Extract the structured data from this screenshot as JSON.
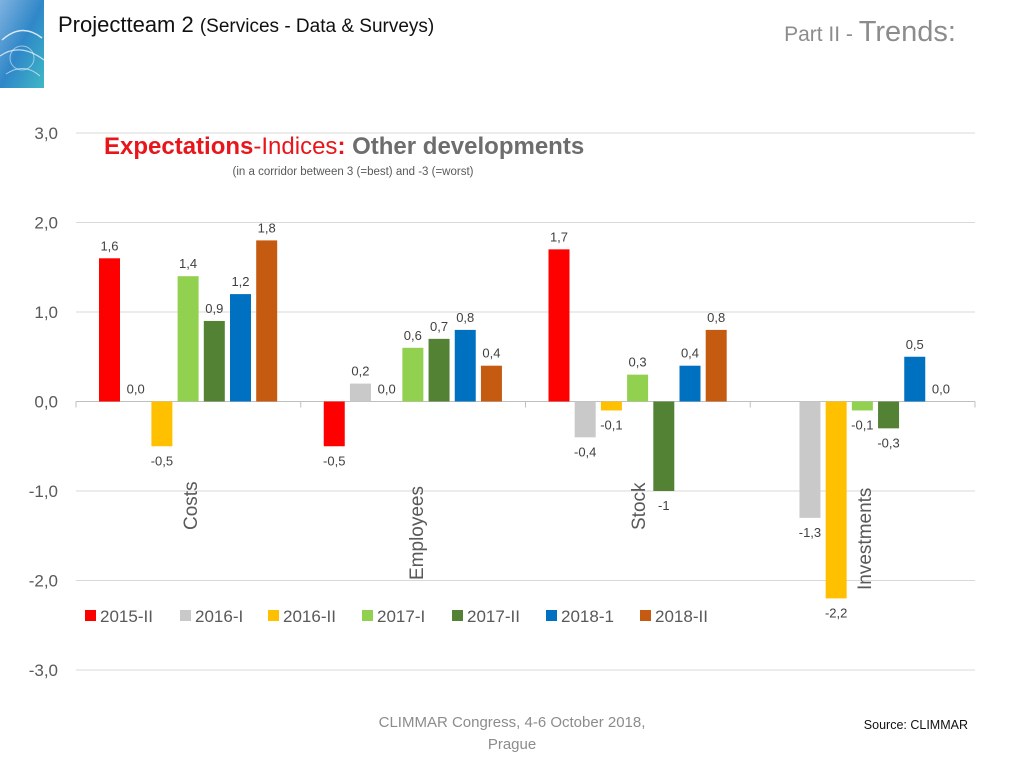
{
  "header": {
    "title": "Projectteam 2",
    "subtitle": "(Services - Data & Surveys)",
    "part_prefix": "Part II - ",
    "part_main": "Trends:"
  },
  "footer": {
    "event_line1": "CLIMMAR Congress, 4-6 October 2018,",
    "event_line2": "Prague",
    "source": "Source: CLIMMAR"
  },
  "colors": {
    "title_red": "#e8161b",
    "title_gray": "#6d6d6d",
    "axis_text": "#595959",
    "grid": "#d9d9d9"
  },
  "chart_data": {
    "type": "bar",
    "title_parts": [
      {
        "text": "Expectations",
        "color": "#e8161b",
        "bold": true
      },
      {
        "text": "-Indices",
        "color": "#e8161b",
        "bold": false
      },
      {
        "text": ": ",
        "color": "#e8161b",
        "bold": true
      },
      {
        "text": "Other developments",
        "color": "#6d6d6d",
        "bold": true
      }
    ],
    "subtitle": "(in a corridor between 3 (=best) and -3 (=worst)",
    "categories": [
      "Costs",
      "Employees",
      "Stock",
      "Investments"
    ],
    "ylim": [
      -3,
      3
    ],
    "yticks": [
      3,
      2,
      1,
      0,
      -1,
      -2,
      -3
    ],
    "ytick_labels": [
      "3,0",
      "2,0",
      "1,0",
      "0,0",
      "-1,0",
      "-2,0",
      "-3,0"
    ],
    "grid": true,
    "legend_position": "bottom-left",
    "series": [
      {
        "name": "2015-II",
        "color": "#ff0000",
        "values": [
          1.6,
          -0.5,
          1.7,
          null
        ],
        "labels": [
          "1,6",
          "-0,5",
          "1,7",
          ""
        ]
      },
      {
        "name": "2016-I",
        "color": "#c9c9c9",
        "values": [
          0.0,
          0.2,
          -0.4,
          -1.3
        ],
        "labels": [
          "0,0",
          "0,2",
          "-0,4",
          "-1,3"
        ]
      },
      {
        "name": "2016-II",
        "color": "#ffc000",
        "values": [
          -0.5,
          0.0,
          -0.1,
          -2.2
        ],
        "labels": [
          "-0,5",
          "0,0",
          "-0,1",
          "-2,2"
        ]
      },
      {
        "name": "2017-I",
        "color": "#92d050",
        "values": [
          1.4,
          0.6,
          0.3,
          -0.1
        ],
        "labels": [
          "1,4",
          "0,6",
          "0,3",
          "-0,1"
        ]
      },
      {
        "name": "2017-II",
        "color": "#548235",
        "values": [
          0.9,
          0.7,
          -1.0,
          -0.3
        ],
        "labels": [
          "0,9",
          "0,7",
          "-1",
          "-0,3"
        ]
      },
      {
        "name": "2018-1",
        "color": "#0070c0",
        "values": [
          1.2,
          0.8,
          0.4,
          0.5
        ],
        "labels": [
          "1,2",
          "0,8",
          "0,4",
          "0,5"
        ]
      },
      {
        "name": "2018-II",
        "color": "#c55a11",
        "values": [
          1.8,
          0.4,
          0.8,
          0.0
        ],
        "labels": [
          "1,8",
          "0,4",
          "0,8",
          "0,0"
        ]
      }
    ]
  }
}
